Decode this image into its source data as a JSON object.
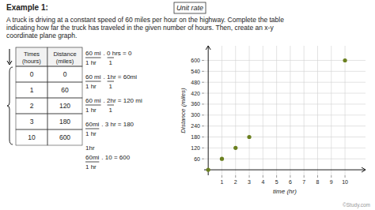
{
  "chart_data": {
    "type": "scatter",
    "title": "Example 1:",
    "unit_rate_label": "Unit rate",
    "problem": [
      "A truck is driving at a constant speed of 60 miles per hour on the highway. Complete the table",
      "indicating how far the truck has traveled in the given number of hours. Then, create an x-y",
      "coordinate plane graph."
    ],
    "table_headers": [
      "Times\n(hours)",
      "Distance\n(miles)"
    ],
    "calculations": [
      {
        "numerator": "60 mi",
        "denominator": "1 hr",
        "rest": ". 0 hrs = 0",
        "rest_denominator": "1"
      },
      {
        "numerator": "60 mi",
        "denominator": "1 hr",
        "rest": ". 1hr = 60mi",
        "rest_denominator": "1"
      },
      {
        "numerator": "60 mi",
        "denominator": "1 hr",
        "rest": ". 2hr = 120 mi",
        "rest_denominator": "1"
      },
      {
        "numerator": "60mi",
        "denominator": "1 hr",
        "rest": ". 3 hr = 180"
      },
      {
        "above": "1hr",
        "numerator": "60mi",
        "denominator": "1 hr",
        "rest": ". 10 = 600"
      }
    ],
    "x": [
      0,
      1,
      2,
      3,
      10
    ],
    "values": [
      0,
      60,
      120,
      180,
      600
    ],
    "color": "#6b8020",
    "xlim": [
      -0.3,
      11.5
    ],
    "ylim": [
      -30,
      680
    ],
    "xticks": [
      1,
      2,
      3,
      4,
      5,
      6,
      7,
      8,
      9,
      10
    ],
    "yticks": [
      60,
      120,
      180,
      240,
      300,
      360,
      420,
      480,
      540,
      600
    ],
    "xlabel": "time (hr)",
    "ylabel": "Distance (miles)",
    "grid": true,
    "watermark": "©Study.com"
  }
}
